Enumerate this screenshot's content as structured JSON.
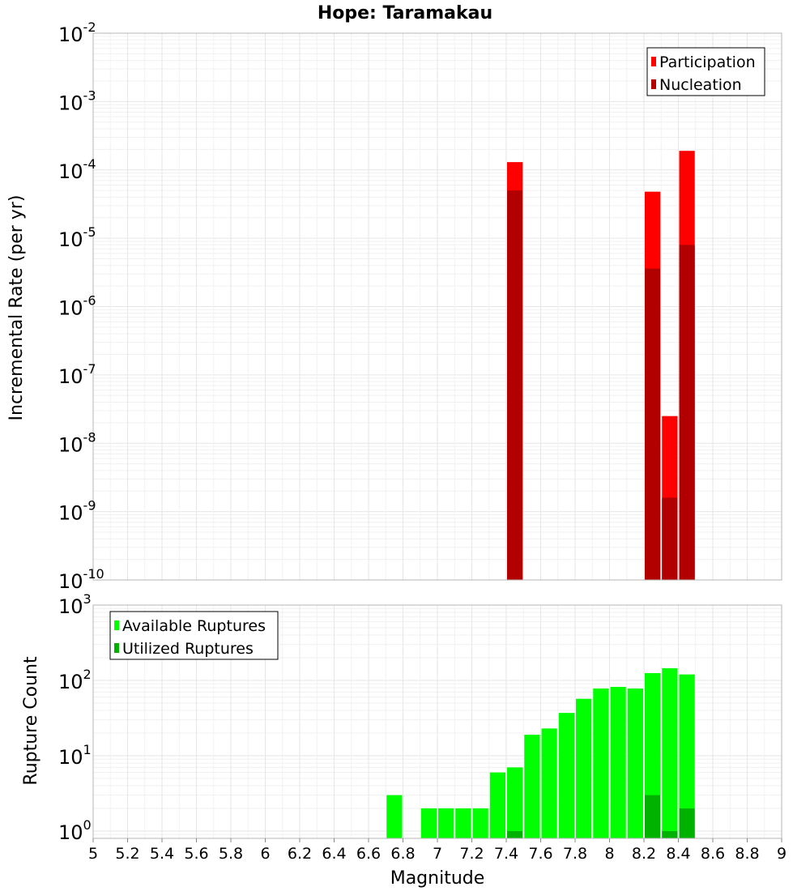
{
  "title": "Hope: Taramakau",
  "x_ticks": [
    "5",
    "5.2",
    "5.4",
    "5.6",
    "5.8",
    "6",
    "6.2",
    "6.4",
    "6.6",
    "6.8",
    "7",
    "7.2",
    "7.4",
    "7.6",
    "7.8",
    "8",
    "8.2",
    "8.4",
    "8.6",
    "8.8",
    "9"
  ],
  "colors": {
    "participation": "#ff0000",
    "nucleation": "#b20000",
    "available": "#00ff00",
    "utilized": "#00b200",
    "grid": "#e6e6e6",
    "frame": "#b4b4b4"
  },
  "chart_data": [
    {
      "type": "bar",
      "title": "Hope: Taramakau",
      "xlabel": "Magnitude",
      "ylabel": "Incremental Rate (per yr)",
      "yscale": "log",
      "xlim": [
        5,
        9
      ],
      "ylim": [
        1e-10,
        0.01
      ],
      "y_tick_exponents": [
        "-2",
        "-3",
        "-4",
        "-5",
        "-6",
        "-7",
        "-8",
        "-9",
        "-10"
      ],
      "bin_width": 0.1,
      "legend": [
        "Participation",
        "Nucleation"
      ],
      "legend_position": "top-right",
      "series": [
        {
          "name": "Participation",
          "x": [
            7.45,
            8.25,
            8.35,
            8.45
          ],
          "values": [
            0.00013,
            4.8e-05,
            2.5e-08,
            0.00019
          ]
        },
        {
          "name": "Nucleation",
          "x": [
            7.45,
            8.25,
            8.35,
            8.45
          ],
          "values": [
            5e-05,
            3.6e-06,
            1.6e-09,
            8e-06
          ]
        }
      ]
    },
    {
      "type": "bar",
      "xlabel": "Magnitude",
      "ylabel": "Rupture Count",
      "yscale": "log",
      "xlim": [
        5,
        9
      ],
      "ylim": [
        0.8,
        1000
      ],
      "y_tick_exponents": [
        "3",
        "2",
        "1",
        "0"
      ],
      "bin_width": 0.1,
      "legend": [
        "Available Ruptures",
        "Utilized Ruptures"
      ],
      "legend_position": "top-left",
      "series": [
        {
          "name": "Available Ruptures",
          "x": [
            6.75,
            6.95,
            7.05,
            7.15,
            7.25,
            7.35,
            7.45,
            7.55,
            7.65,
            7.75,
            7.85,
            7.95,
            8.05,
            8.15,
            8.25,
            8.35,
            8.45
          ],
          "values": [
            3,
            2,
            2,
            2,
            2,
            6,
            7,
            19,
            23,
            37,
            57,
            78,
            82,
            78,
            125,
            145,
            120
          ]
        },
        {
          "name": "Utilized Ruptures",
          "x": [
            7.45,
            8.25,
            8.35,
            8.45
          ],
          "values": [
            1,
            3,
            1,
            2
          ]
        }
      ]
    }
  ]
}
